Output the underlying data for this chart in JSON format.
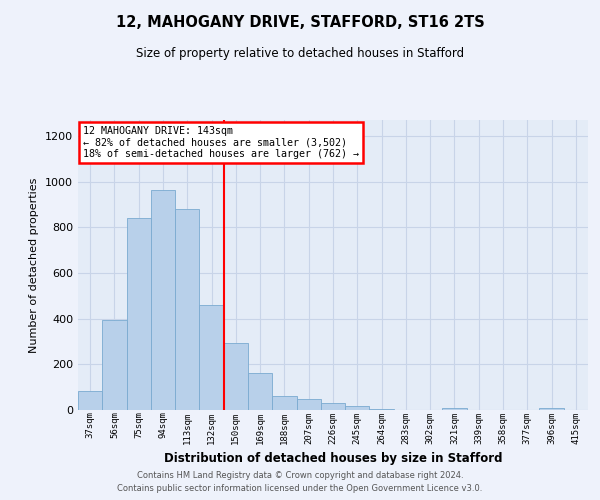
{
  "title1": "12, MAHOGANY DRIVE, STAFFORD, ST16 2TS",
  "title2": "Size of property relative to detached houses in Stafford",
  "xlabel": "Distribution of detached houses by size in Stafford",
  "ylabel": "Number of detached properties",
  "categories": [
    "37sqm",
    "56sqm",
    "75sqm",
    "94sqm",
    "113sqm",
    "132sqm",
    "150sqm",
    "169sqm",
    "188sqm",
    "207sqm",
    "226sqm",
    "245sqm",
    "264sqm",
    "283sqm",
    "302sqm",
    "321sqm",
    "339sqm",
    "358sqm",
    "377sqm",
    "396sqm",
    "415sqm"
  ],
  "values": [
    82,
    395,
    843,
    963,
    880,
    460,
    295,
    160,
    62,
    48,
    30,
    18,
    5,
    0,
    0,
    8,
    0,
    0,
    0,
    8,
    0
  ],
  "bar_color": "#b8d0ea",
  "bar_edge_color": "#7aaad0",
  "vline_x": 5.5,
  "vline_color": "red",
  "annotation_text": "12 MAHOGANY DRIVE: 143sqm\n← 82% of detached houses are smaller (3,502)\n18% of semi-detached houses are larger (762) →",
  "annotation_box_color": "white",
  "annotation_box_edge_color": "red",
  "ylim": [
    0,
    1270
  ],
  "yticks": [
    0,
    200,
    400,
    600,
    800,
    1000,
    1200
  ],
  "grid_color": "#c8d4e8",
  "footer1": "Contains HM Land Registry data © Crown copyright and database right 2024.",
  "footer2": "Contains public sector information licensed under the Open Government Licence v3.0.",
  "bg_color": "#eef2fb",
  "plot_bg_color": "#e4ecf7"
}
